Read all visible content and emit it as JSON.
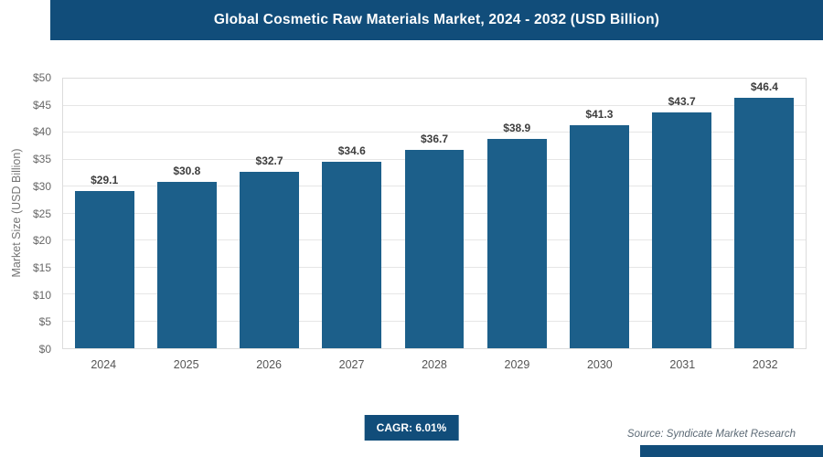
{
  "header": {
    "title": "Global Cosmetic Raw Materials Market, 2024 - 2032 (USD Billion)"
  },
  "chart_data": {
    "type": "bar",
    "title": "Global Cosmetic Raw Materials Market, 2024 - 2032 (USD Billion)",
    "categories": [
      "2024",
      "2025",
      "2026",
      "2027",
      "2028",
      "2029",
      "2030",
      "2031",
      "2032"
    ],
    "values": [
      29.1,
      30.8,
      32.7,
      34.6,
      36.7,
      38.9,
      41.3,
      43.7,
      46.4
    ],
    "value_labels": [
      "$29.1",
      "$30.8",
      "$32.7",
      "$34.6",
      "$36.7",
      "$38.9",
      "$41.3",
      "$43.7",
      "$46.4"
    ],
    "xlabel": "",
    "ylabel": "Market Size (USD Billion)",
    "ylim": [
      0,
      50
    ],
    "ytick_step": 5,
    "ytick_labels": [
      "$0",
      "$5",
      "$10",
      "$15",
      "$20",
      "$25",
      "$30",
      "$35",
      "$40",
      "$45",
      "$50"
    ],
    "grid": true,
    "legend": "none"
  },
  "footer": {
    "cagr_label": "CAGR: 6.01%",
    "source": "Source: Syndicate Market Research"
  },
  "colors": {
    "header_bg": "#114d7a",
    "bar": "#1c5f8a",
    "cagr_bg": "#114d7a",
    "bottom_bar": "#114d7a"
  }
}
